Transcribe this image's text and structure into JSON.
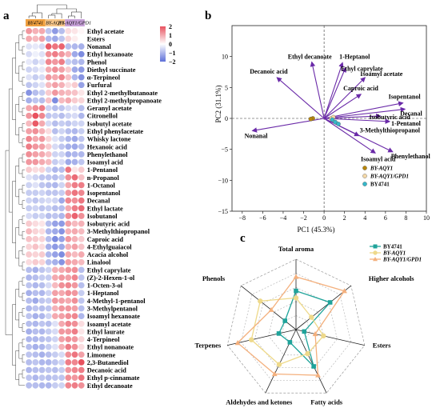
{
  "figure": {
    "panel_labels": [
      "a",
      "b",
      "c"
    ]
  },
  "chart_data": [
    {
      "type": "heatmap",
      "panel": "a",
      "column_groups": [
        {
          "label": "BY4741",
          "color": "#f0a040"
        },
        {
          "label": "BY-AQY1",
          "color": "#f7c68a"
        },
        {
          "label": "BY-AQY1/GPD1",
          "color": "#c7a0d8"
        }
      ],
      "n_columns": 9,
      "rows": [
        "Ethyl acetate",
        "Esters",
        "Nonanal",
        "Ethyl hexanoate",
        "Phenol",
        "Diethyl succinate",
        "α-Terpineol",
        "Furfural",
        "Ethyl 2-methylbutanoate",
        "Ethyl 2-methylpropanoate",
        "Geranyl acetate",
        "Citronellol",
        "Isobutyl acetate",
        "Ethyl phenylacetate",
        "Whisky lactone",
        "Hexanoic acid",
        "Phenylethanol",
        "Isoamyl acid",
        "1-Pentanol",
        "n-Propanol",
        "1-Octanol",
        "Isopentanol",
        "Decanal",
        "Ethyl lactate",
        "Isobutanol",
        "Isobutyric acid",
        "3-Methylthiopropanol",
        "Caproic acid",
        "4-Ethylguaiacol",
        "Acacia alcohol",
        "Linalool",
        "Ethyl caprylate",
        "(Z)-2-Hexen-1-ol",
        "1-Octen-3-ol",
        "1-Heptanol",
        "4-Methyl-1-pentanol",
        "3-Methylpentanol",
        "Isoamyl hexanoate",
        "Isoamyl acetate",
        "Ethyl laurate",
        "4-Terpineol",
        "Ethyl nonanoate",
        "Limonene",
        "2,3-Butanediol",
        "Decanoic acid",
        "Ethyl p-cinnamate",
        "Ethyl decanoate"
      ],
      "values": [
        [
          1.2,
          0.9,
          1.0,
          -0.8,
          -1.4,
          -0.9,
          0.4,
          0.3,
          0.1
        ],
        [
          1.0,
          0.8,
          1.1,
          -1.0,
          -1.2,
          -0.8,
          0.5,
          0.2,
          0.0
        ],
        [
          -0.4,
          -0.3,
          -0.5,
          1.9,
          1.6,
          1.8,
          -0.9,
          -1.0,
          -1.1
        ],
        [
          -0.5,
          -0.2,
          -0.4,
          1.3,
          1.5,
          1.2,
          0.9,
          -1.2,
          -1.6
        ],
        [
          -0.3,
          -0.6,
          -0.4,
          1.4,
          1.2,
          1.5,
          -0.7,
          -0.9,
          -1.0
        ],
        [
          -0.6,
          -0.5,
          -0.3,
          1.0,
          1.3,
          1.1,
          0.6,
          -1.2,
          -1.4
        ],
        [
          -0.4,
          -0.7,
          -0.5,
          1.2,
          1.0,
          1.4,
          0.7,
          -1.0,
          -1.5
        ],
        [
          -0.8,
          -0.6,
          -0.4,
          0.8,
          1.1,
          0.9,
          0.4,
          0.6,
          -1.3
        ],
        [
          -1.5,
          -0.9,
          -0.7,
          0.6,
          1.2,
          0.9,
          0.8,
          0.7,
          0.3
        ],
        [
          -1.1,
          -0.8,
          -0.9,
          0.7,
          -1.6,
          0.8,
          1.0,
          0.6,
          0.5
        ],
        [
          1.0,
          1.3,
          1.5,
          -0.6,
          -0.9,
          -0.8,
          -0.5,
          -0.4,
          -0.9
        ],
        [
          1.2,
          2.0,
          1.4,
          -0.8,
          -0.7,
          -0.9,
          -0.6,
          -0.5,
          -1.0
        ],
        [
          0.8,
          1.9,
          1.0,
          -0.5,
          -0.9,
          -0.7,
          -0.8,
          -0.6,
          -0.6
        ],
        [
          1.1,
          1.3,
          0.9,
          0.4,
          -0.9,
          -0.6,
          -0.9,
          -1.0,
          -0.7
        ],
        [
          1.4,
          1.0,
          1.2,
          0.5,
          -0.4,
          -0.7,
          -1.0,
          -1.2,
          -0.8
        ],
        [
          1.5,
          1.2,
          1.1,
          0.6,
          -0.5,
          -0.8,
          -1.1,
          -1.2,
          -0.9
        ],
        [
          1.3,
          1.1,
          1.0,
          0.7,
          -0.6,
          -0.6,
          -1.1,
          -1.0,
          -1.0
        ],
        [
          1.2,
          1.2,
          1.0,
          0.8,
          -0.7,
          -0.5,
          -1.2,
          -1.1,
          -0.8
        ],
        [
          0.6,
          0.4,
          0.5,
          -0.6,
          -1.0,
          -0.9,
          1.6,
          0.3,
          0.6
        ],
        [
          -0.4,
          -0.6,
          -0.8,
          -0.8,
          -0.9,
          -0.7,
          1.3,
          1.7,
          0.7
        ],
        [
          -0.6,
          -0.4,
          -0.8,
          -0.9,
          -1.0,
          -0.6,
          1.0,
          1.5,
          1.5
        ],
        [
          -0.7,
          -0.7,
          -0.6,
          -0.8,
          -0.8,
          -0.7,
          1.2,
          1.6,
          1.4
        ],
        [
          -0.6,
          -0.8,
          -0.6,
          -0.5,
          -0.6,
          -1.2,
          1.4,
          1.3,
          1.6
        ],
        [
          -0.7,
          -0.6,
          -0.8,
          -0.7,
          -0.9,
          -0.9,
          1.0,
          1.5,
          1.7
        ],
        [
          -0.5,
          -0.7,
          -0.6,
          -0.9,
          -0.8,
          -1.0,
          1.3,
          1.8,
          1.3
        ],
        [
          0.6,
          0.4,
          0.3,
          -0.9,
          -1.3,
          -1.4,
          1.1,
          0.8,
          0.9
        ],
        [
          0.8,
          0.5,
          0.4,
          -1.0,
          -1.2,
          -1.5,
          0.9,
          1.0,
          0.8
        ],
        [
          0.7,
          0.6,
          0.5,
          -0.9,
          -1.6,
          -1.3,
          1.2,
          0.9,
          0.6
        ],
        [
          0.5,
          0.7,
          0.4,
          -1.1,
          -1.4,
          -1.2,
          0.9,
          1.1,
          0.7
        ],
        [
          0.6,
          0.5,
          0.6,
          -1.0,
          -1.3,
          -1.6,
          1.0,
          0.8,
          1.0
        ],
        [
          0.4,
          0.6,
          0.5,
          -0.9,
          -1.1,
          -1.5,
          1.1,
          1.0,
          0.8
        ],
        [
          -0.9,
          -1.1,
          -0.8,
          -0.6,
          0.9,
          1.0,
          1.2,
          1.3,
          -0.9
        ],
        [
          -1.0,
          -0.9,
          -0.7,
          -0.7,
          1.0,
          1.2,
          1.1,
          1.4,
          -0.8
        ],
        [
          -0.8,
          -1.0,
          -0.9,
          -0.5,
          0.8,
          1.3,
          1.4,
          1.2,
          -0.9
        ],
        [
          -1.1,
          -0.9,
          -1.0,
          -0.6,
          1.1,
          1.0,
          1.3,
          1.2,
          -0.7
        ],
        [
          -0.9,
          -1.2,
          -0.8,
          -0.7,
          1.2,
          1.1,
          1.0,
          1.3,
          -0.8
        ],
        [
          -1.0,
          -0.8,
          -0.9,
          -0.8,
          0.9,
          1.2,
          1.2,
          1.1,
          -0.9
        ],
        [
          -0.8,
          -1.1,
          -1.0,
          -0.6,
          1.0,
          1.1,
          1.3,
          1.4,
          -1.0
        ],
        [
          -0.9,
          -1.0,
          -0.8,
          -0.9,
          -0.4,
          1.0,
          1.4,
          1.3,
          0.4
        ],
        [
          -1.1,
          -0.9,
          -1.0,
          -0.7,
          -0.5,
          1.2,
          1.2,
          1.5,
          0.3
        ],
        [
          -1.0,
          -1.0,
          -0.9,
          -0.8,
          -0.6,
          1.1,
          1.3,
          1.2,
          0.5
        ],
        [
          -0.9,
          -1.1,
          -1.0,
          -0.7,
          -0.4,
          0.9,
          1.5,
          1.3,
          0.4
        ],
        [
          -0.8,
          -0.9,
          -1.1,
          -0.9,
          -0.7,
          -0.5,
          1.3,
          1.6,
          1.1
        ],
        [
          -0.9,
          -0.8,
          -1.0,
          -1.0,
          -0.8,
          -0.6,
          1.5,
          1.4,
          2.2
        ],
        [
          -1.0,
          -0.9,
          -0.9,
          -0.8,
          -0.9,
          -0.7,
          1.2,
          1.4,
          1.5
        ],
        [
          -0.8,
          -1.0,
          -0.8,
          -0.9,
          -0.8,
          -0.8,
          1.3,
          1.2,
          1.6
        ],
        [
          -0.9,
          -0.9,
          -1.0,
          -1.0,
          -0.7,
          -0.6,
          1.4,
          1.5,
          1.3
        ]
      ],
      "colorbar": {
        "ticks": [
          "2",
          "1",
          "0",
          "−1",
          "−2"
        ],
        "range": [
          -2,
          2
        ],
        "low_color": "#5d6fd8",
        "mid_color": "#ffffff",
        "high_color": "#e8525f"
      }
    },
    {
      "type": "scatter",
      "panel": "b",
      "xlabel": "PC1 (45.3%)",
      "ylabel": "PC2 (31.1%)",
      "xlim": [
        -9,
        10
      ],
      "ylim": [
        -15,
        15
      ],
      "xticks": [
        "−8",
        "−6",
        "−4",
        "−2",
        "0",
        "2",
        "4",
        "6",
        "8",
        "10"
      ],
      "yticks": [
        "10",
        "5",
        "0",
        "−5",
        "−10",
        "−15"
      ],
      "grid": false,
      "legend_position": "bottom-right",
      "series": [
        {
          "name": "BY-AQY1",
          "color": "#b8860b",
          "points": [
            [
              -1.1,
              0.0
            ],
            [
              -1.3,
              -0.1
            ]
          ]
        },
        {
          "name": "BY-AQY1/GPD1",
          "color": "#f5d9a8",
          "points": [
            [
              0.7,
              0.0
            ],
            [
              0.9,
              0.2
            ]
          ]
        },
        {
          "name": "BY4741",
          "color": "#35b7c9",
          "points": [
            [
              0.8,
              -0.2
            ],
            [
              1.1,
              -0.6
            ],
            [
              1.4,
              -0.9
            ]
          ]
        }
      ],
      "vector_color": "#6a2aa8",
      "vectors": [
        {
          "label": "Ethyl decanoate",
          "x": -1.2,
          "y": 9.1
        },
        {
          "label": "Decanoic acid",
          "x": -4.6,
          "y": 6.6
        },
        {
          "label": "1-Heptanol",
          "x": 1.8,
          "y": 9.0
        },
        {
          "label": "Ethyl caprylate",
          "x": 2.1,
          "y": 8.2
        },
        {
          "label": "Isoamyl acetate",
          "x": 4.0,
          "y": 6.6
        },
        {
          "label": "Caproic acid",
          "x": 3.6,
          "y": 3.9
        },
        {
          "label": "Isopentanol",
          "x": 7.7,
          "y": 2.5
        },
        {
          "label": "Decanal",
          "x": 7.9,
          "y": 1.5
        },
        {
          "label": "Isobutyric acid",
          "x": 5.5,
          "y": 0.4
        },
        {
          "label": "1-Pentanol",
          "x": 6.4,
          "y": -0.5
        },
        {
          "label": "3-Methylthiopropanol",
          "x": 3.4,
          "y": -2.8
        },
        {
          "label": "Phenylethanol",
          "x": 6.7,
          "y": -5.4
        },
        {
          "label": "Isoamyl acid",
          "x": 5.0,
          "y": -5.6
        },
        {
          "label": "Nonanal",
          "x": -7.0,
          "y": -2.0
        }
      ]
    },
    {
      "type": "radar",
      "panel": "c",
      "categories": [
        "Total aroma",
        "Higher alcohols",
        "Esters",
        "Fatty acids",
        "Aldehydes and ketones",
        "Terpenes",
        "Phenols"
      ],
      "series": [
        {
          "name": "BY4741",
          "color": "#1fa39a",
          "values": [
            0.55,
            0.62,
            0.12,
            0.58,
            0.2,
            0.25,
            0.2
          ]
        },
        {
          "name": "BY-AQY1",
          "color": "#eed98a",
          "values": [
            0.45,
            0.28,
            0.4,
            0.38,
            0.55,
            0.65,
            0.65
          ]
        },
        {
          "name": "BY-AQY1/GPD1",
          "color": "#f4b07d",
          "values": [
            0.75,
            0.88,
            0.28,
            0.72,
            0.7,
            0.85,
            0.45
          ]
        }
      ],
      "levels": 5
    }
  ]
}
